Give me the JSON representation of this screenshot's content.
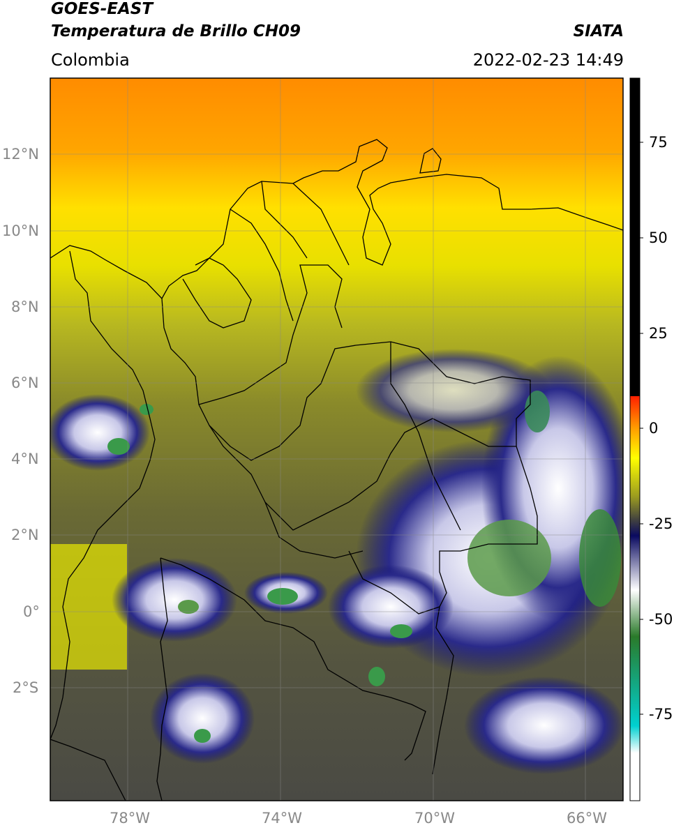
{
  "header": {
    "satellite": "GOES-EAST",
    "product": "Temperatura de Brillo CH09",
    "region": "Colombia",
    "agency": "SIATA",
    "datetime": "2022-02-23 14:49"
  },
  "map": {
    "lat_labels": [
      "12°N",
      "10°N",
      "8°N",
      "6°N",
      "4°N",
      "2°N",
      "0°",
      "2°S"
    ],
    "lon_labels": [
      "78°W",
      "74°W",
      "70°W",
      "66°W"
    ],
    "lat_range": [
      -5,
      14
    ],
    "lon_range": [
      -79.6,
      -64.6
    ],
    "grid": true
  },
  "colorbar": {
    "ticks": [
      "75",
      "50",
      "25",
      "0",
      "-25",
      "-50",
      "-75"
    ],
    "range": [
      -100,
      90
    ],
    "colors": {
      "warm_top": "#000000",
      "hot": "#ff0000",
      "orange": "#ff9900",
      "yellow": "#ffff00",
      "olive": "#7a7a30",
      "gray": "#4a4a4a",
      "navy": "#101070",
      "white": "#ffffff",
      "green": "#2e8b2e",
      "cyan": "#00e0e0"
    }
  }
}
